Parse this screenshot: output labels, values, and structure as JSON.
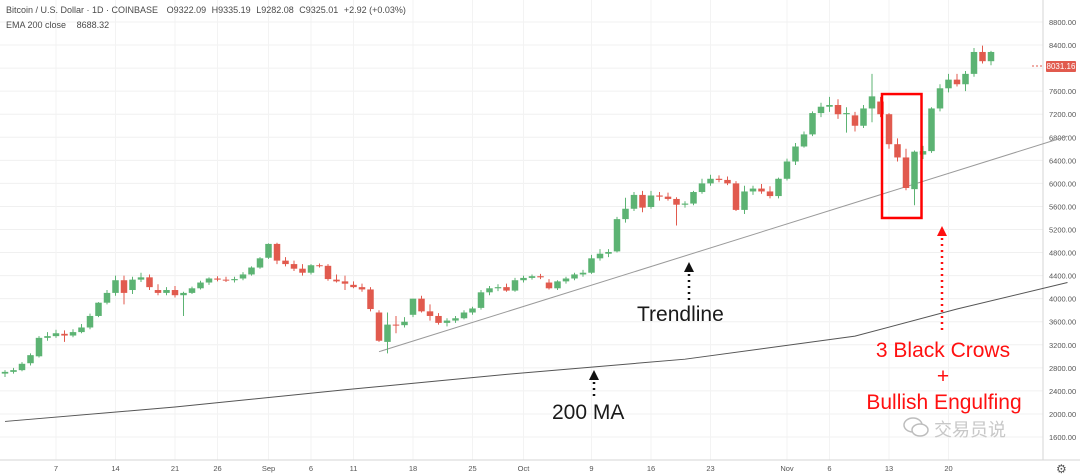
{
  "header": {
    "symbol": "Bitcoin / U.S. Dollar · 1D · COINBASE",
    "ohlc": [
      "O9322.09",
      "H9335.19",
      "L9282.08",
      "C9325.01",
      "+2.92 (+0.03%)"
    ],
    "indicator_label": "EMA 200 close",
    "indicator_value": "8688.32"
  },
  "current_price": "8031.16",
  "annotations": {
    "trendline": "Trendline",
    "ma": "200 MA",
    "pattern_line1": "3 Black Crows",
    "pattern_line2": "+",
    "pattern_line3": "Bullish Engulfing"
  },
  "watermark": "交易员说",
  "colors": {
    "up": "#5cb373",
    "down": "#e15a4e",
    "line": "#9a9a9a",
    "ma": "#555555",
    "highlight": "#ff0000"
  },
  "chart_data": {
    "type": "candlestick",
    "ylim": [
      1600,
      8800
    ],
    "y_ticks": [
      1600,
      2000,
      2400,
      2800,
      3200,
      3600,
      4000,
      4400,
      4800,
      5200,
      5600,
      6000,
      6400,
      6800,
      7200,
      7600,
      8000,
      8400,
      8800
    ],
    "y_tick_labels": [
      "1600.00",
      "2000.00",
      "2400.00",
      "2800.00",
      "3200.00",
      "3600.00",
      "4000.00",
      "4400.00",
      "4800.00",
      "5200.00",
      "5600.00",
      "6000.00",
      "6400.00",
      "6800.00",
      "7200.00",
      "7600.00",
      "8000.00",
      "8400.00",
      "8800.00"
    ],
    "x_labels": [
      {
        "label": "7",
        "index": 6
      },
      {
        "label": "14",
        "index": 13
      },
      {
        "label": "21",
        "index": 20
      },
      {
        "label": "26",
        "index": 25
      },
      {
        "label": "Sep",
        "index": 31
      },
      {
        "label": "6",
        "index": 36
      },
      {
        "label": "11",
        "index": 41
      },
      {
        "label": "18",
        "index": 48
      },
      {
        "label": "25",
        "index": 55
      },
      {
        "label": "Oct",
        "index": 61
      },
      {
        "label": "9",
        "index": 69
      },
      {
        "label": "16",
        "index": 76
      },
      {
        "label": "23",
        "index": 83
      },
      {
        "label": "Nov",
        "index": 92
      },
      {
        "label": "6",
        "index": 97
      },
      {
        "label": "13",
        "index": 104
      },
      {
        "label": "20",
        "index": 111
      }
    ],
    "candles": [
      {
        "o": 2700,
        "h": 2760,
        "l": 2640,
        "c": 2730
      },
      {
        "o": 2730,
        "h": 2800,
        "l": 2700,
        "c": 2760
      },
      {
        "o": 2760,
        "h": 2900,
        "l": 2740,
        "c": 2870
      },
      {
        "o": 2880,
        "h": 3050,
        "l": 2840,
        "c": 3020
      },
      {
        "o": 3000,
        "h": 3350,
        "l": 2980,
        "c": 3320
      },
      {
        "o": 3320,
        "h": 3420,
        "l": 3270,
        "c": 3350
      },
      {
        "o": 3350,
        "h": 3460,
        "l": 3320,
        "c": 3400
      },
      {
        "o": 3390,
        "h": 3450,
        "l": 3250,
        "c": 3360
      },
      {
        "o": 3360,
        "h": 3470,
        "l": 3330,
        "c": 3420
      },
      {
        "o": 3420,
        "h": 3560,
        "l": 3400,
        "c": 3500
      },
      {
        "o": 3500,
        "h": 3740,
        "l": 3470,
        "c": 3700
      },
      {
        "o": 3700,
        "h": 3940,
        "l": 3680,
        "c": 3930
      },
      {
        "o": 3930,
        "h": 4150,
        "l": 3900,
        "c": 4100
      },
      {
        "o": 4100,
        "h": 4400,
        "l": 4050,
        "c": 4320
      },
      {
        "o": 4320,
        "h": 4400,
        "l": 3900,
        "c": 4100
      },
      {
        "o": 4150,
        "h": 4380,
        "l": 4080,
        "c": 4330
      },
      {
        "o": 4330,
        "h": 4450,
        "l": 4290,
        "c": 4370
      },
      {
        "o": 4370,
        "h": 4420,
        "l": 4150,
        "c": 4200
      },
      {
        "o": 4150,
        "h": 4250,
        "l": 4060,
        "c": 4100
      },
      {
        "o": 4100,
        "h": 4200,
        "l": 4060,
        "c": 4150
      },
      {
        "o": 4150,
        "h": 4220,
        "l": 4020,
        "c": 4060
      },
      {
        "o": 4060,
        "h": 4120,
        "l": 3700,
        "c": 4100
      },
      {
        "o": 4100,
        "h": 4210,
        "l": 4080,
        "c": 4180
      },
      {
        "o": 4180,
        "h": 4310,
        "l": 4160,
        "c": 4280
      },
      {
        "o": 4280,
        "h": 4370,
        "l": 4240,
        "c": 4350
      },
      {
        "o": 4350,
        "h": 4390,
        "l": 4300,
        "c": 4330
      },
      {
        "o": 4330,
        "h": 4380,
        "l": 4290,
        "c": 4320
      },
      {
        "o": 4320,
        "h": 4380,
        "l": 4280,
        "c": 4340
      },
      {
        "o": 4350,
        "h": 4460,
        "l": 4320,
        "c": 4420
      },
      {
        "o": 4420,
        "h": 4560,
        "l": 4400,
        "c": 4540
      },
      {
        "o": 4540,
        "h": 4720,
        "l": 4520,
        "c": 4700
      },
      {
        "o": 4710,
        "h": 4960,
        "l": 4690,
        "c": 4950
      },
      {
        "o": 4950,
        "h": 4970,
        "l": 4600,
        "c": 4660
      },
      {
        "o": 4660,
        "h": 4720,
        "l": 4560,
        "c": 4600
      },
      {
        "o": 4600,
        "h": 4660,
        "l": 4480,
        "c": 4520
      },
      {
        "o": 4520,
        "h": 4600,
        "l": 4400,
        "c": 4450
      },
      {
        "o": 4450,
        "h": 4600,
        "l": 4420,
        "c": 4580
      },
      {
        "o": 4580,
        "h": 4610,
        "l": 4540,
        "c": 4570
      },
      {
        "o": 4570,
        "h": 4600,
        "l": 4310,
        "c": 4340
      },
      {
        "o": 4330,
        "h": 4420,
        "l": 4280,
        "c": 4300
      },
      {
        "o": 4300,
        "h": 4400,
        "l": 4150,
        "c": 4260
      },
      {
        "o": 4240,
        "h": 4300,
        "l": 4180,
        "c": 4200
      },
      {
        "o": 4200,
        "h": 4260,
        "l": 4120,
        "c": 4160
      },
      {
        "o": 4160,
        "h": 4200,
        "l": 3780,
        "c": 3820
      },
      {
        "o": 3760,
        "h": 3800,
        "l": 3250,
        "c": 3270
      },
      {
        "o": 3250,
        "h": 3760,
        "l": 3050,
        "c": 3550
      },
      {
        "o": 3550,
        "h": 3700,
        "l": 3400,
        "c": 3540
      },
      {
        "o": 3540,
        "h": 3680,
        "l": 3500,
        "c": 3600
      },
      {
        "o": 3720,
        "h": 4000,
        "l": 3680,
        "c": 4000
      },
      {
        "o": 4000,
        "h": 4050,
        "l": 3760,
        "c": 3780
      },
      {
        "o": 3780,
        "h": 3900,
        "l": 3620,
        "c": 3700
      },
      {
        "o": 3700,
        "h": 3750,
        "l": 3550,
        "c": 3580
      },
      {
        "o": 3580,
        "h": 3660,
        "l": 3520,
        "c": 3620
      },
      {
        "o": 3620,
        "h": 3700,
        "l": 3580,
        "c": 3660
      },
      {
        "o": 3660,
        "h": 3800,
        "l": 3640,
        "c": 3760
      },
      {
        "o": 3760,
        "h": 3860,
        "l": 3720,
        "c": 3830
      },
      {
        "o": 3840,
        "h": 4150,
        "l": 3810,
        "c": 4110
      },
      {
        "o": 4110,
        "h": 4220,
        "l": 4060,
        "c": 4180
      },
      {
        "o": 4180,
        "h": 4250,
        "l": 4130,
        "c": 4200
      },
      {
        "o": 4200,
        "h": 4260,
        "l": 4120,
        "c": 4140
      },
      {
        "o": 4140,
        "h": 4360,
        "l": 4120,
        "c": 4320
      },
      {
        "o": 4320,
        "h": 4400,
        "l": 4280,
        "c": 4360
      },
      {
        "o": 4360,
        "h": 4420,
        "l": 4330,
        "c": 4390
      },
      {
        "o": 4390,
        "h": 4430,
        "l": 4340,
        "c": 4370
      },
      {
        "o": 4280,
        "h": 4340,
        "l": 4160,
        "c": 4180
      },
      {
        "o": 4180,
        "h": 4320,
        "l": 4150,
        "c": 4300
      },
      {
        "o": 4300,
        "h": 4380,
        "l": 4260,
        "c": 4350
      },
      {
        "o": 4350,
        "h": 4450,
        "l": 4320,
        "c": 4420
      },
      {
        "o": 4420,
        "h": 4500,
        "l": 4380,
        "c": 4450
      },
      {
        "o": 4450,
        "h": 4760,
        "l": 4430,
        "c": 4700
      },
      {
        "o": 4700,
        "h": 4860,
        "l": 4660,
        "c": 4780
      },
      {
        "o": 4780,
        "h": 4860,
        "l": 4720,
        "c": 4810
      },
      {
        "o": 4820,
        "h": 5420,
        "l": 4800,
        "c": 5380
      },
      {
        "o": 5380,
        "h": 5750,
        "l": 5320,
        "c": 5560
      },
      {
        "o": 5560,
        "h": 5850,
        "l": 5520,
        "c": 5800
      },
      {
        "o": 5800,
        "h": 5870,
        "l": 5500,
        "c": 5580
      },
      {
        "o": 5590,
        "h": 5870,
        "l": 5560,
        "c": 5790
      },
      {
        "o": 5790,
        "h": 5850,
        "l": 5700,
        "c": 5770
      },
      {
        "o": 5770,
        "h": 5840,
        "l": 5700,
        "c": 5730
      },
      {
        "o": 5730,
        "h": 5760,
        "l": 5270,
        "c": 5630
      },
      {
        "o": 5630,
        "h": 5690,
        "l": 5580,
        "c": 5650
      },
      {
        "o": 5650,
        "h": 5870,
        "l": 5620,
        "c": 5850
      },
      {
        "o": 5850,
        "h": 6080,
        "l": 5820,
        "c": 6000
      },
      {
        "o": 6000,
        "h": 6150,
        "l": 5960,
        "c": 6080
      },
      {
        "o": 6080,
        "h": 6140,
        "l": 6020,
        "c": 6060
      },
      {
        "o": 6060,
        "h": 6120,
        "l": 5970,
        "c": 6000
      },
      {
        "o": 6000,
        "h": 6040,
        "l": 5520,
        "c": 5540
      },
      {
        "o": 5540,
        "h": 5960,
        "l": 5470,
        "c": 5860
      },
      {
        "o": 5860,
        "h": 5960,
        "l": 5800,
        "c": 5910
      },
      {
        "o": 5910,
        "h": 5990,
        "l": 5820,
        "c": 5860
      },
      {
        "o": 5860,
        "h": 5950,
        "l": 5740,
        "c": 5780
      },
      {
        "o": 5780,
        "h": 6100,
        "l": 5740,
        "c": 6080
      },
      {
        "o": 6080,
        "h": 6430,
        "l": 6050,
        "c": 6380
      },
      {
        "o": 6380,
        "h": 6700,
        "l": 6320,
        "c": 6640
      },
      {
        "o": 6640,
        "h": 6900,
        "l": 6620,
        "c": 6850
      },
      {
        "o": 6850,
        "h": 7250,
        "l": 6820,
        "c": 7220
      },
      {
        "o": 7220,
        "h": 7400,
        "l": 7150,
        "c": 7330
      },
      {
        "o": 7330,
        "h": 7500,
        "l": 7240,
        "c": 7360
      },
      {
        "o": 7360,
        "h": 7460,
        "l": 7120,
        "c": 7200
      },
      {
        "o": 7200,
        "h": 7320,
        "l": 6880,
        "c": 7220
      },
      {
        "o": 7180,
        "h": 7240,
        "l": 6900,
        "c": 7000
      },
      {
        "o": 7000,
        "h": 7360,
        "l": 6960,
        "c": 7300
      },
      {
        "o": 7300,
        "h": 7900,
        "l": 7060,
        "c": 7510
      },
      {
        "o": 7420,
        "h": 7500,
        "l": 7150,
        "c": 7200
      },
      {
        "o": 7200,
        "h": 7220,
        "l": 6600,
        "c": 6680
      },
      {
        "o": 6680,
        "h": 6780,
        "l": 6380,
        "c": 6450
      },
      {
        "o": 6450,
        "h": 6600,
        "l": 5880,
        "c": 5920
      },
      {
        "o": 5900,
        "h": 6570,
        "l": 5620,
        "c": 6550
      },
      {
        "o": 6500,
        "h": 6650,
        "l": 6420,
        "c": 6560
      },
      {
        "o": 6560,
        "h": 7320,
        "l": 6530,
        "c": 7300
      },
      {
        "o": 7300,
        "h": 7720,
        "l": 7250,
        "c": 7650
      },
      {
        "o": 7650,
        "h": 7900,
        "l": 7580,
        "c": 7800
      },
      {
        "o": 7800,
        "h": 7900,
        "l": 7680,
        "c": 7720
      },
      {
        "o": 7720,
        "h": 7950,
        "l": 7600,
        "c": 7900
      },
      {
        "o": 7900,
        "h": 8350,
        "l": 7850,
        "c": 8280
      },
      {
        "o": 8280,
        "h": 8390,
        "l": 8080,
        "c": 8120
      },
      {
        "o": 8120,
        "h": 8300,
        "l": 8050,
        "c": 8280
      }
    ],
    "ma_200": [
      [
        0,
        1870
      ],
      [
        20,
        2120
      ],
      [
        40,
        2420
      ],
      [
        60,
        2700
      ],
      [
        80,
        2950
      ],
      [
        100,
        3350
      ],
      [
        112,
        3820
      ],
      [
        125,
        4280
      ]
    ],
    "trendline": [
      [
        44,
        3080
      ],
      [
        125,
        6820
      ]
    ],
    "highlight_box": {
      "from_index": 104,
      "to_index": 107,
      "low": 5400,
      "high": 7550
    }
  }
}
